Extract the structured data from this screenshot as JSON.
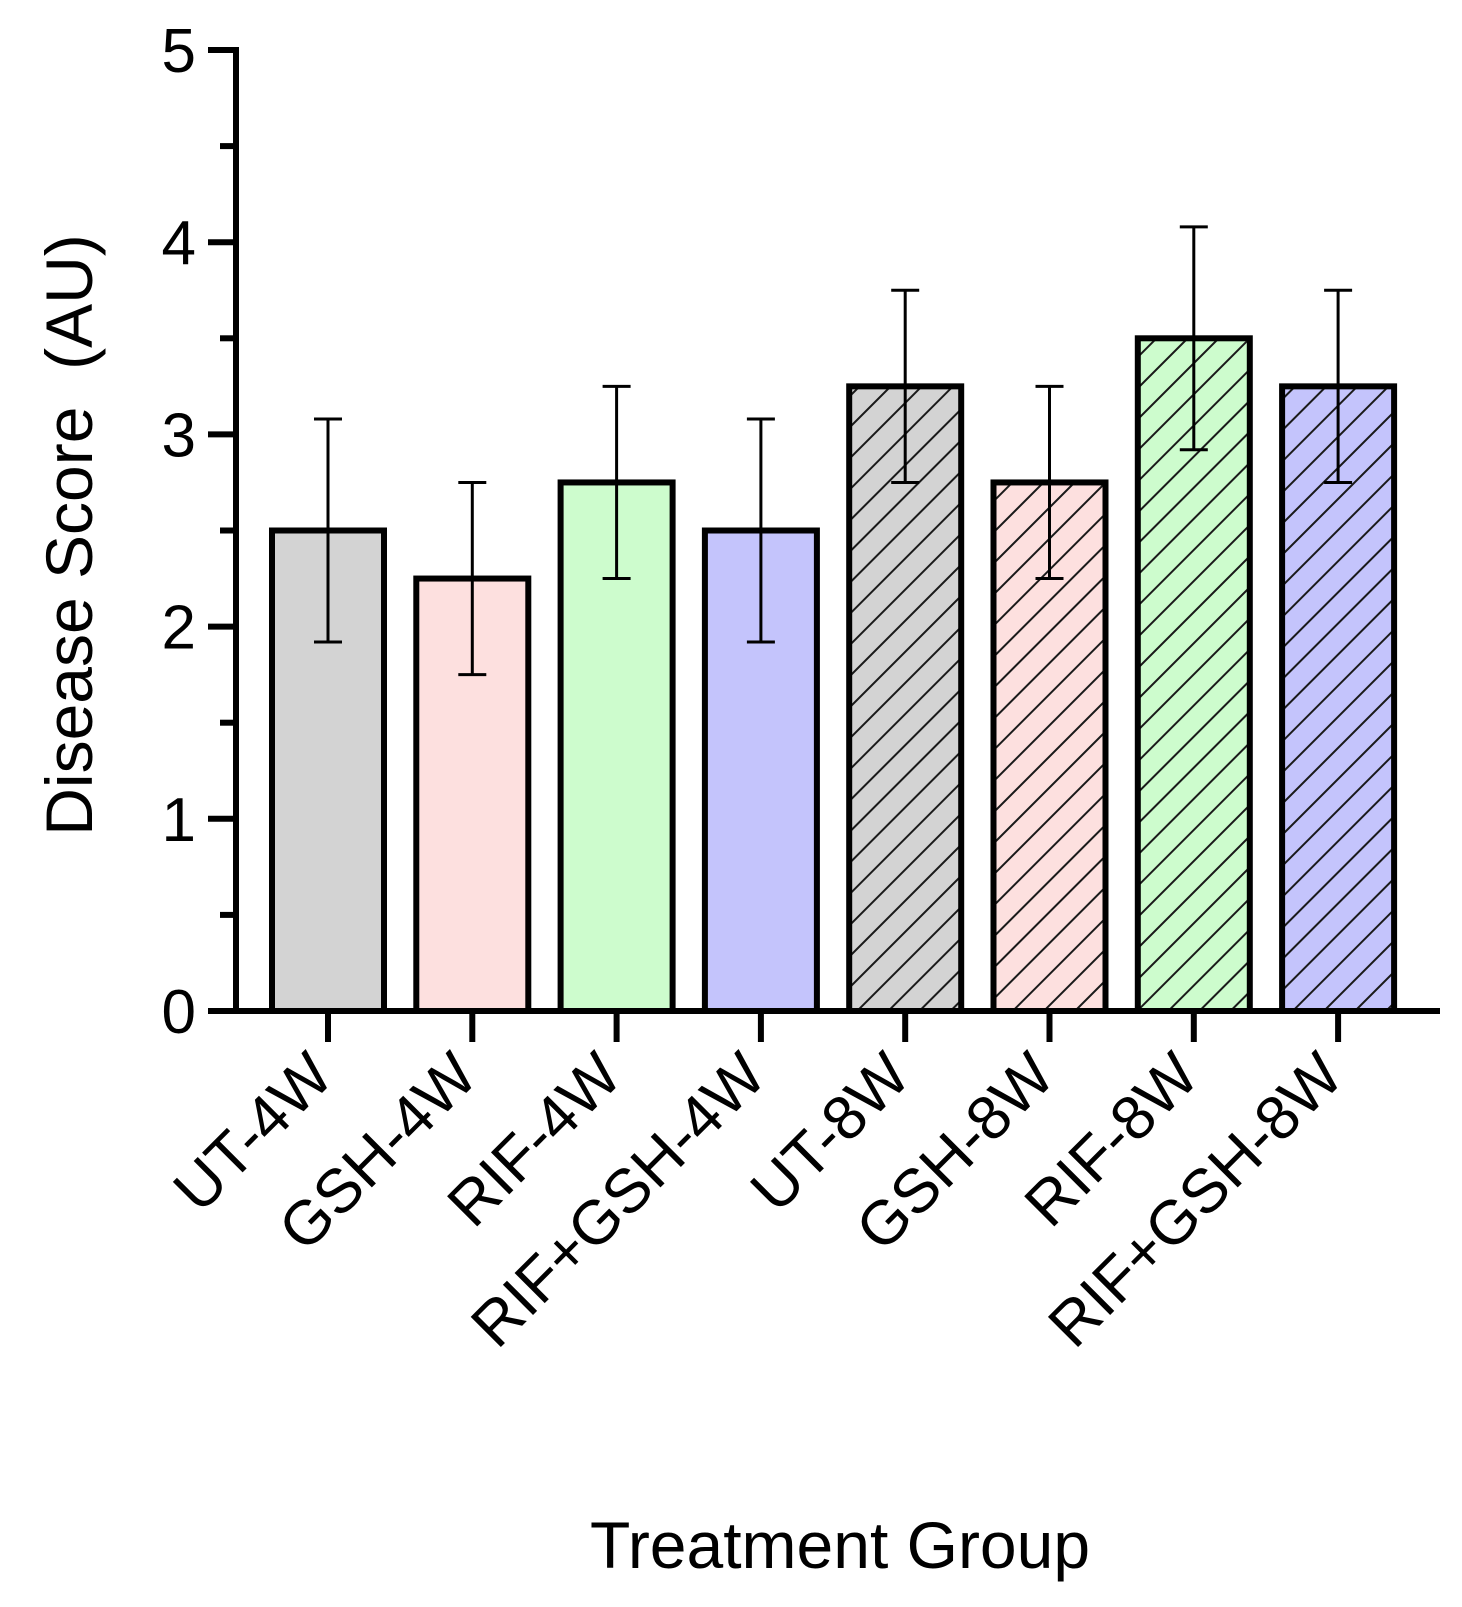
{
  "chart_data": {
    "type": "bar",
    "title": "",
    "xlabel": "Treatment Group",
    "ylabel": "Disease Score  (AU)",
    "ylim": [
      0,
      5
    ],
    "yticks": [
      "0",
      "1",
      "2",
      "3",
      "4",
      "5"
    ],
    "categories": [
      "UT-4W",
      "GSH-4W",
      "RIF-4W",
      "RIF+GSH-4W",
      "UT-8W",
      "GSH-8W",
      "RIF-8W",
      "RIF+GSH-8W"
    ],
    "values": [
      2.5,
      2.25,
      2.75,
      2.5,
      3.25,
      2.75,
      3.5,
      3.25
    ],
    "errors": [
      0.58,
      0.5,
      0.5,
      0.58,
      0.5,
      0.5,
      0.58,
      0.5
    ],
    "colors": [
      "#d3d3d3",
      "#fde0df",
      "#cdfccd",
      "#c4c4fc",
      "#d3d3d3",
      "#fde0df",
      "#cdfccd",
      "#c4c4fc"
    ],
    "hatched": [
      false,
      false,
      false,
      false,
      true,
      true,
      true,
      true
    ],
    "grid": false,
    "legend": "none"
  }
}
